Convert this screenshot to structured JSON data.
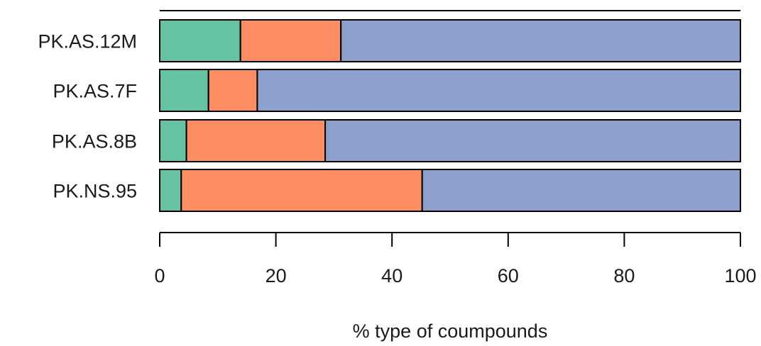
{
  "chart_data": {
    "type": "bar",
    "orientation": "horizontal",
    "stacked": true,
    "categories": [
      "PK.AS.12M",
      "PK.AS.7F",
      "PK.AS.8B",
      "PK.NS.95"
    ],
    "series": [
      {
        "values": [
          13.9,
          8.4,
          4.6,
          3.7
        ],
        "color": "#66c2a5"
      },
      {
        "values": [
          17.3,
          8.4,
          23.9,
          41.5
        ],
        "color": "#fc8d62"
      },
      {
        "values": [
          68.8,
          83.2,
          71.5,
          54.8
        ],
        "color": "#8da0cb"
      }
    ],
    "xlabel": "% type of coumpounds",
    "ylabel": "",
    "title": "",
    "xlim": [
      0,
      100
    ],
    "xticks": [
      "0",
      "20",
      "40",
      "60",
      "80",
      "100"
    ],
    "grid": false,
    "legend": "none"
  }
}
